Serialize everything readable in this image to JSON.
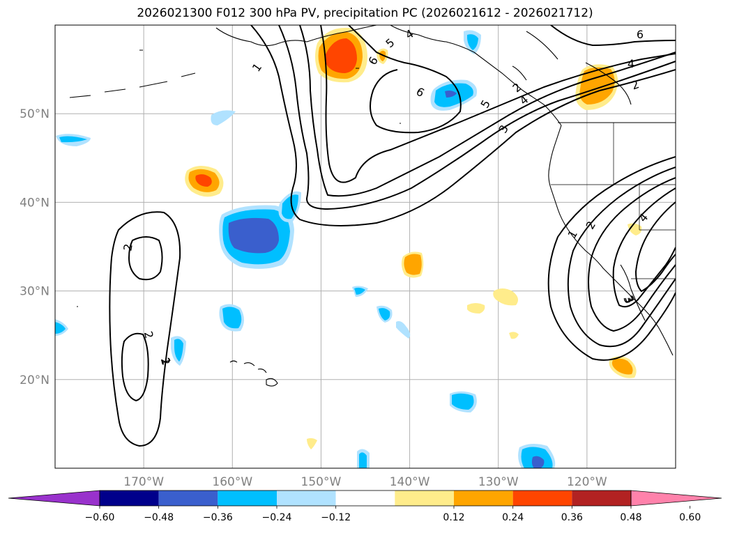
{
  "title": "2026021300 F012 300 hPa PV, precipitation PC (2026021612 - 2026021712)",
  "map": {
    "lat_labels": [
      "50°N",
      "40°N",
      "30°N",
      "20°N"
    ],
    "lat_values": [
      50,
      40,
      30,
      20
    ],
    "lon_labels": [
      "170°W",
      "160°W",
      "150°W",
      "140°W",
      "130°W",
      "120°W"
    ],
    "lon_values": [
      -170,
      -160,
      -150,
      -140,
      -130,
      -120
    ],
    "contour_labels": [
      "1",
      "2",
      "3",
      "4",
      "5",
      "6",
      "6",
      "5",
      "4",
      "3",
      "2",
      "6",
      "4",
      "2",
      "1",
      "2",
      "3",
      "4",
      "2",
      "2",
      "1",
      "3"
    ]
  },
  "colorbar": {
    "tick_labels": [
      "−0.60",
      "−0.48",
      "−0.36",
      "−0.24",
      "−0.12",
      "0.12",
      "0.24",
      "0.36",
      "0.48",
      "0.60"
    ],
    "levels": [
      -0.6,
      -0.48,
      -0.36,
      -0.24,
      -0.12,
      0.12,
      0.24,
      0.36,
      0.48,
      0.6
    ],
    "colors": [
      "#9932cc",
      "#00008b",
      "#3a5fcd",
      "#00bfff",
      "#b0e2ff",
      "#ffffff",
      "#ffec8b",
      "#ffa500",
      "#ff4500",
      "#b22222",
      "#ff82ab"
    ]
  },
  "palette": {
    "land_line": "#000000",
    "grid": "#b0b0b0",
    "pv_contour": "#000000"
  }
}
